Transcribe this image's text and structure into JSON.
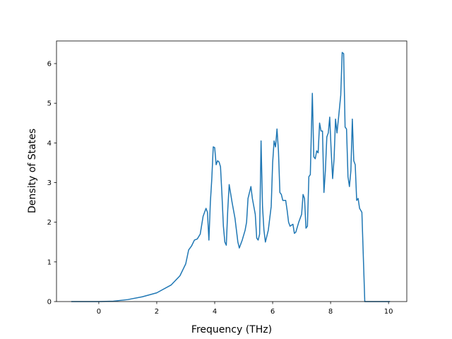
{
  "chart_data": {
    "type": "line",
    "xlabel": "Frequency (THz)",
    "ylabel": "Density of States",
    "xlim": [
      -1.46,
      10.63
    ],
    "ylim": [
      0,
      6.57
    ],
    "xticks": [
      0,
      2,
      4,
      6,
      8,
      10
    ],
    "yticks": [
      0,
      1,
      2,
      3,
      4,
      5,
      6
    ],
    "series": [
      {
        "color": "#1f77b4",
        "x": [
          -0.95,
          0,
          0.5,
          1,
          1.5,
          2,
          2.5,
          2.8,
          3.0,
          3.1,
          3.2,
          3.3,
          3.4,
          3.5,
          3.6,
          3.7,
          3.75,
          3.8,
          3.85,
          3.9,
          3.95,
          4.0,
          4.05,
          4.1,
          4.15,
          4.2,
          4.25,
          4.3,
          4.35,
          4.4,
          4.45,
          4.5,
          4.6,
          4.7,
          4.8,
          4.85,
          4.95,
          5.05,
          5.1,
          5.15,
          5.25,
          5.3,
          5.4,
          5.45,
          5.5,
          5.55,
          5.6,
          5.65,
          5.7,
          5.75,
          5.85,
          5.95,
          6.0,
          6.05,
          6.1,
          6.15,
          6.2,
          6.25,
          6.3,
          6.35,
          6.45,
          6.5,
          6.55,
          6.6,
          6.7,
          6.75,
          6.8,
          6.9,
          7.0,
          7.05,
          7.1,
          7.15,
          7.2,
          7.25,
          7.3,
          7.37,
          7.42,
          7.47,
          7.52,
          7.57,
          7.62,
          7.67,
          7.72,
          7.77,
          7.82,
          7.87,
          7.92,
          7.97,
          8.02,
          8.07,
          8.12,
          8.17,
          8.22,
          8.27,
          8.35,
          8.4,
          8.45,
          8.5,
          8.55,
          8.6,
          8.65,
          8.7,
          8.75,
          8.8,
          8.85,
          8.9,
          8.95,
          9.0,
          9.08,
          9.18,
          10.05
        ],
        "values": [
          0,
          0,
          0.01,
          0.05,
          0.12,
          0.22,
          0.42,
          0.65,
          0.95,
          1.3,
          1.4,
          1.55,
          1.58,
          1.7,
          2.15,
          2.35,
          2.25,
          1.55,
          2.5,
          3.1,
          3.9,
          3.88,
          3.45,
          3.55,
          3.52,
          3.4,
          2.7,
          1.9,
          1.5,
          1.42,
          2.3,
          2.95,
          2.5,
          2.1,
          1.5,
          1.35,
          1.55,
          1.8,
          2.0,
          2.6,
          2.9,
          2.6,
          2.2,
          1.6,
          1.55,
          1.7,
          4.05,
          2.4,
          1.8,
          1.5,
          1.8,
          2.4,
          3.5,
          4.05,
          3.9,
          4.35,
          3.8,
          2.75,
          2.7,
          2.55,
          2.55,
          2.3,
          2.0,
          1.9,
          1.95,
          1.72,
          1.75,
          2.0,
          2.2,
          2.7,
          2.6,
          1.85,
          1.9,
          3.15,
          3.2,
          5.25,
          3.65,
          3.6,
          3.8,
          3.75,
          4.5,
          4.3,
          4.3,
          2.75,
          3.3,
          4.15,
          4.25,
          4.65,
          3.8,
          3.1,
          3.6,
          4.6,
          4.25,
          4.6,
          5.2,
          6.28,
          6.25,
          4.4,
          4.35,
          3.15,
          2.9,
          3.3,
          4.6,
          3.55,
          3.45,
          2.55,
          2.6,
          2.35,
          2.25,
          0,
          0
        ]
      }
    ]
  }
}
